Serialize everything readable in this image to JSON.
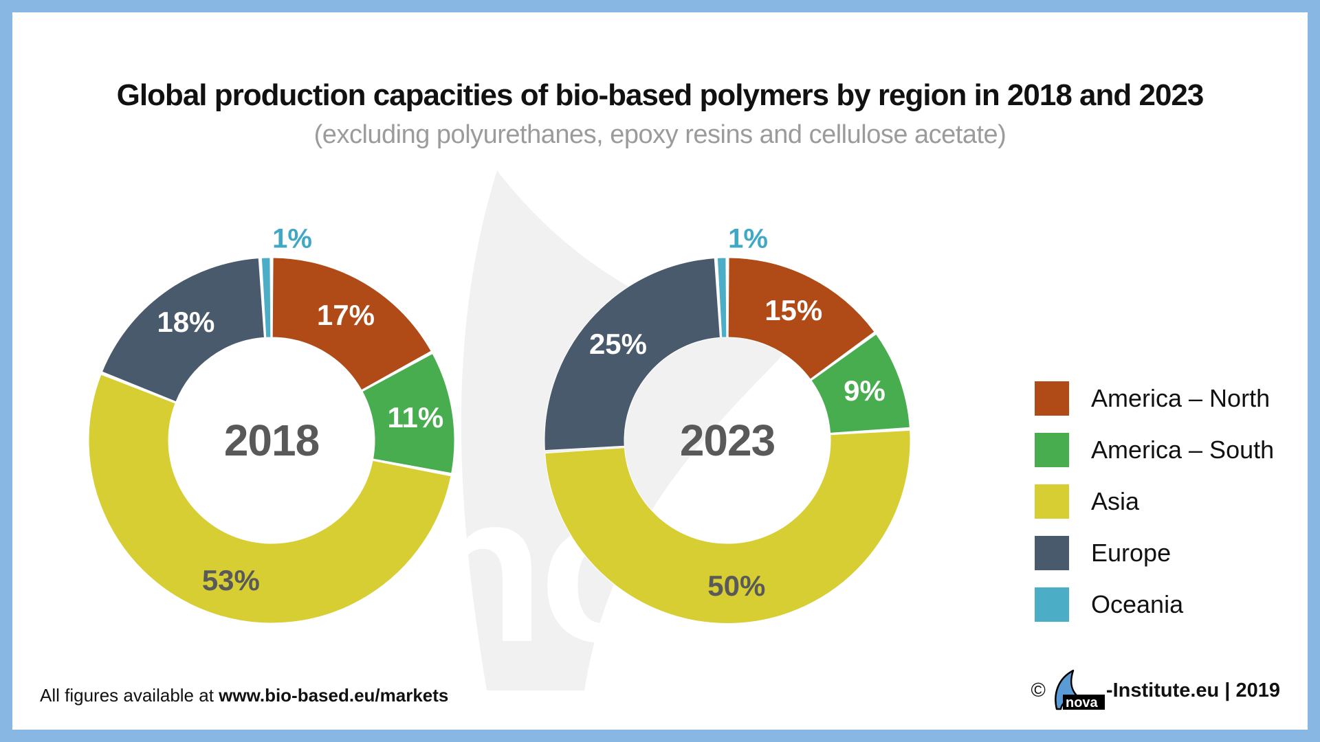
{
  "title": "Global production capacities of bio-based polymers by region in 2018 and 2023",
  "subtitle": "(excluding polyurethanes, epoxy resins and cellulose acetate)",
  "colors": {
    "border_blue": "#87B7E2",
    "america_north": "#B04A17",
    "america_south": "#48AD4F",
    "asia": "#D6CE33",
    "europe": "#4A5A6D",
    "oceania": "#4BADC6",
    "year_grey": "#595959",
    "subtitle_grey": "#9B9B9B",
    "logo_blue": "#5B9BD5",
    "watermark_grey": "#F1F1F1"
  },
  "legend": {
    "items": [
      {
        "label": "America – North",
        "color": "#B04A17"
      },
      {
        "label": "America – South",
        "color": "#48AD4F"
      },
      {
        "label": "Asia",
        "color": "#D6CE33"
      },
      {
        "label": "Europe",
        "color": "#4A5A6D"
      },
      {
        "label": "Oceania",
        "color": "#4BADC6"
      }
    ]
  },
  "chart_data": [
    {
      "type": "pie",
      "subtype": "donut",
      "center_label": "2018",
      "categories": [
        "America – North",
        "America – South",
        "Asia",
        "Europe",
        "Oceania"
      ],
      "values": [
        17,
        11,
        53,
        18,
        1
      ],
      "labels": [
        "17%",
        "11%",
        "53%",
        "18%",
        "1%"
      ],
      "colors": [
        "#B04A17",
        "#48AD4F",
        "#D6CE33",
        "#4A5A6D",
        "#4BADC6"
      ],
      "label_text_colors": [
        "#FFFFFF",
        "#FFFFFF",
        "#595959",
        "#FFFFFF",
        "#3FA8C4"
      ],
      "start_angle_deg": 0,
      "direction": "clockwise",
      "legend_position": "right"
    },
    {
      "type": "pie",
      "subtype": "donut",
      "center_label": "2023",
      "categories": [
        "America – North",
        "America – South",
        "Asia",
        "Europe",
        "Oceania"
      ],
      "values": [
        15,
        9,
        50,
        25,
        1
      ],
      "labels": [
        "15%",
        "9%",
        "50%",
        "25%",
        "1%"
      ],
      "colors": [
        "#B04A17",
        "#48AD4F",
        "#D6CE33",
        "#4A5A6D",
        "#4BADC6"
      ],
      "label_text_colors": [
        "#FFFFFF",
        "#FFFFFF",
        "#595959",
        "#FFFFFF",
        "#3FA8C4"
      ],
      "start_angle_deg": 0,
      "direction": "clockwise",
      "legend_position": "right"
    }
  ],
  "watermark_text": "nova",
  "footer": {
    "left_prefix": "All figures available at ",
    "left_link": "www.bio-based.eu/markets",
    "copyright_symbol": "©",
    "logo_text": "nova",
    "right_suffix": "-Institute.eu | 2019"
  }
}
